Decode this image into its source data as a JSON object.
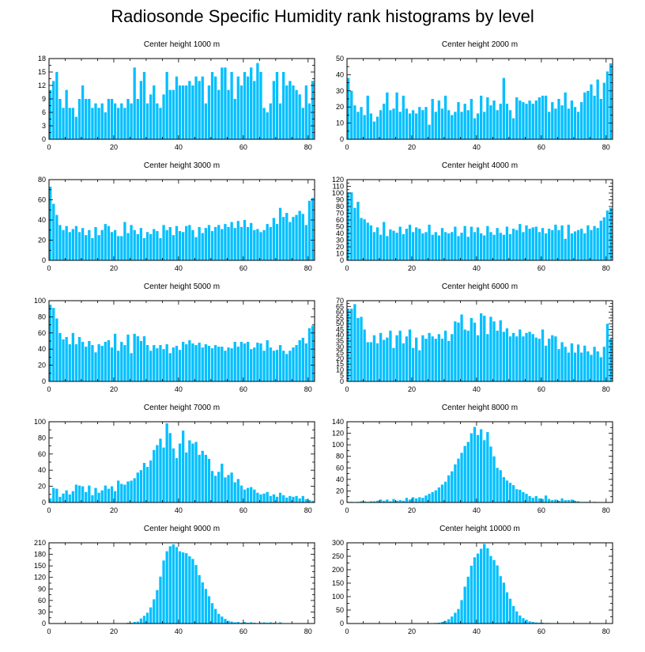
{
  "title": "Radiosonde Specific Humidity rank histograms by level",
  "bar_color": "#00bfff",
  "chart_data": [
    {
      "type": "bar",
      "title": "Center height 1000 m",
      "xlabel": "",
      "ylabel": "",
      "xlim": [
        0,
        82
      ],
      "ylim": [
        0,
        18
      ],
      "xticks": [
        0,
        20,
        40,
        60,
        80
      ],
      "yticks": [
        0,
        3,
        6,
        9,
        12,
        15,
        18
      ],
      "values": [
        11,
        13,
        15,
        9,
        7,
        11,
        7,
        7,
        5,
        9,
        12,
        9,
        9,
        7,
        8,
        7,
        8,
        6,
        9,
        9,
        8,
        7,
        8,
        7,
        9,
        8,
        16,
        9,
        13,
        15,
        8,
        10,
        12,
        8,
        7,
        10,
        15,
        11,
        11,
        14,
        12,
        12,
        12,
        13,
        12,
        14,
        13,
        14,
        8,
        12,
        15,
        14,
        11,
        16,
        16,
        11,
        15,
        9,
        14,
        12,
        15,
        14,
        16,
        13,
        17,
        15,
        7,
        6,
        8,
        13,
        15,
        8,
        15,
        12,
        13,
        12,
        11,
        10,
        7,
        12,
        8,
        13
      ]
    },
    {
      "type": "bar",
      "title": "Center height 2000 m",
      "xlabel": "",
      "ylabel": "",
      "xlim": [
        0,
        82
      ],
      "ylim": [
        0,
        50
      ],
      "xticks": [
        0,
        20,
        40,
        60,
        80
      ],
      "yticks": [
        0,
        10,
        20,
        30,
        40,
        50
      ],
      "values": [
        38,
        30,
        21,
        17,
        20,
        15,
        27,
        16,
        11,
        14,
        18,
        22,
        29,
        18,
        19,
        29,
        17,
        27,
        19,
        16,
        18,
        16,
        20,
        18,
        20,
        9,
        25,
        17,
        24,
        19,
        27,
        18,
        15,
        17,
        23,
        17,
        22,
        18,
        25,
        13,
        16,
        27,
        17,
        26,
        21,
        24,
        18,
        22,
        38,
        22,
        18,
        13,
        26,
        24,
        23,
        22,
        24,
        22,
        24,
        26,
        27,
        27,
        17,
        23,
        19,
        25,
        21,
        29,
        19,
        24,
        20,
        17,
        23,
        29,
        30,
        34,
        27,
        37,
        25,
        35,
        42,
        47
      ]
    },
    {
      "type": "bar",
      "title": "Center height 3000 m",
      "xlabel": "",
      "ylabel": "",
      "xlim": [
        0,
        82
      ],
      "ylim": [
        0,
        80
      ],
      "xticks": [
        0,
        20,
        40,
        60,
        80
      ],
      "yticks": [
        0,
        20,
        40,
        60,
        80
      ],
      "values": [
        73,
        56,
        45,
        35,
        30,
        34,
        28,
        31,
        34,
        28,
        32,
        25,
        30,
        22,
        33,
        25,
        30,
        36,
        34,
        28,
        30,
        24,
        24,
        38,
        27,
        35,
        30,
        26,
        32,
        22,
        28,
        26,
        31,
        29,
        22,
        35,
        30,
        33,
        25,
        34,
        29,
        28,
        34,
        35,
        30,
        23,
        33,
        27,
        32,
        35,
        29,
        33,
        35,
        31,
        36,
        33,
        38,
        32,
        39,
        33,
        40,
        33,
        37,
        30,
        31,
        28,
        30,
        36,
        33,
        42,
        36,
        52,
        43,
        47,
        38,
        43,
        45,
        49,
        46,
        35,
        59,
        62
      ]
    },
    {
      "type": "bar",
      "title": "Center height 4000 m",
      "xlabel": "",
      "ylabel": "",
      "xlim": [
        0,
        82
      ],
      "ylim": [
        0,
        120
      ],
      "xticks": [
        0,
        20,
        40,
        60,
        80
      ],
      "yticks": [
        0,
        10,
        20,
        30,
        40,
        50,
        60,
        70,
        80,
        90,
        100,
        110,
        120
      ],
      "values": [
        101,
        101,
        78,
        87,
        63,
        61,
        56,
        52,
        42,
        49,
        38,
        57,
        36,
        46,
        44,
        41,
        50,
        39,
        47,
        53,
        42,
        49,
        47,
        40,
        42,
        53,
        38,
        42,
        37,
        48,
        42,
        40,
        42,
        50,
        36,
        41,
        51,
        35,
        50,
        42,
        49,
        40,
        37,
        51,
        42,
        38,
        48,
        41,
        38,
        50,
        39,
        47,
        45,
        54,
        42,
        52,
        47,
        49,
        50,
        42,
        48,
        40,
        47,
        45,
        53,
        45,
        52,
        32,
        53,
        40,
        43,
        45,
        47,
        40,
        52,
        45,
        51,
        48,
        59,
        64,
        74,
        78
      ]
    },
    {
      "type": "bar",
      "title": "Center height 5000 m",
      "xlabel": "",
      "ylabel": "",
      "xlim": [
        0,
        82
      ],
      "ylim": [
        0,
        100
      ],
      "xticks": [
        0,
        20,
        40,
        60,
        80
      ],
      "yticks": [
        0,
        20,
        40,
        60,
        80,
        100
      ],
      "values": [
        95,
        91,
        78,
        60,
        52,
        55,
        46,
        60,
        46,
        55,
        49,
        43,
        50,
        45,
        36,
        46,
        44,
        49,
        51,
        42,
        59,
        38,
        49,
        45,
        58,
        35,
        59,
        56,
        50,
        56,
        45,
        38,
        45,
        41,
        45,
        40,
        46,
        35,
        42,
        44,
        39,
        49,
        46,
        51,
        47,
        45,
        48,
        42,
        46,
        44,
        41,
        45,
        43,
        43,
        38,
        42,
        41,
        49,
        43,
        49,
        47,
        49,
        40,
        42,
        48,
        47,
        38,
        51,
        42,
        38,
        39,
        45,
        38,
        34,
        38,
        42,
        45,
        51,
        54,
        47,
        66,
        69
      ]
    },
    {
      "type": "bar",
      "title": "Center height 6000 m",
      "xlabel": "",
      "ylabel": "",
      "xlim": [
        0,
        82
      ],
      "ylim": [
        0,
        70
      ],
      "xticks": [
        0,
        20,
        40,
        60,
        80
      ],
      "yticks": [
        0,
        5,
        10,
        15,
        20,
        25,
        30,
        35,
        40,
        45,
        50,
        55,
        60,
        65,
        70
      ],
      "values": [
        62,
        63,
        67,
        55,
        56,
        45,
        34,
        34,
        40,
        33,
        42,
        36,
        38,
        44,
        29,
        40,
        44,
        33,
        39,
        45,
        29,
        38,
        27,
        40,
        37,
        42,
        39,
        37,
        41,
        37,
        44,
        35,
        41,
        52,
        51,
        58,
        45,
        44,
        55,
        51,
        40,
        59,
        57,
        41,
        56,
        52,
        44,
        53,
        43,
        46,
        39,
        42,
        39,
        45,
        39,
        42,
        43,
        41,
        38,
        37,
        45,
        31,
        37,
        40,
        39,
        28,
        34,
        30,
        25,
        33,
        25,
        32,
        25,
        31,
        26,
        23,
        30,
        26,
        21,
        30,
        50,
        37
      ]
    },
    {
      "type": "bar",
      "title": "Center height 7000 m",
      "xlabel": "",
      "ylabel": "",
      "xlim": [
        0,
        82
      ],
      "ylim": [
        0,
        100
      ],
      "xticks": [
        0,
        20,
        40,
        60,
        80
      ],
      "yticks": [
        0,
        20,
        40,
        60,
        80,
        100
      ],
      "values": [
        5,
        18,
        17,
        7,
        11,
        15,
        10,
        14,
        22,
        21,
        20,
        13,
        21,
        9,
        18,
        12,
        15,
        21,
        17,
        20,
        14,
        27,
        23,
        22,
        26,
        27,
        30,
        37,
        40,
        49,
        44,
        52,
        65,
        71,
        79,
        68,
        98,
        86,
        67,
        55,
        73,
        89,
        62,
        77,
        73,
        75,
        59,
        64,
        59,
        54,
        39,
        33,
        38,
        48,
        31,
        34,
        37,
        25,
        29,
        21,
        16,
        18,
        19,
        16,
        12,
        10,
        11,
        13,
        8,
        10,
        7,
        12,
        9,
        6,
        8,
        7,
        8,
        5,
        8,
        4,
        3,
        2
      ]
    },
    {
      "type": "bar",
      "title": "Center height 8000 m",
      "xlabel": "",
      "ylabel": "",
      "xlim": [
        0,
        82
      ],
      "ylim": [
        0,
        140
      ],
      "xticks": [
        0,
        20,
        40,
        60,
        80
      ],
      "yticks": [
        0,
        20,
        40,
        60,
        80,
        100,
        120,
        140
      ],
      "values": [
        1,
        1,
        0,
        1,
        2,
        2,
        1,
        2,
        2,
        3,
        5,
        3,
        5,
        2,
        6,
        3,
        4,
        3,
        8,
        5,
        9,
        7,
        9,
        8,
        12,
        15,
        18,
        21,
        26,
        31,
        36,
        47,
        54,
        66,
        76,
        86,
        98,
        105,
        120,
        131,
        117,
        127,
        108,
        122,
        97,
        80,
        60,
        56,
        44,
        38,
        34,
        30,
        23,
        22,
        18,
        15,
        11,
        8,
        11,
        7,
        6,
        12,
        6,
        4,
        5,
        3,
        7,
        4,
        4,
        5,
        3,
        2,
        1,
        1,
        1,
        0,
        1,
        0,
        0,
        0,
        0,
        0
      ]
    },
    {
      "type": "bar",
      "title": "Center height 9000 m",
      "xlabel": "",
      "ylabel": "",
      "xlim": [
        0,
        82
      ],
      "ylim": [
        0,
        210
      ],
      "xticks": [
        0,
        20,
        40,
        60,
        80
      ],
      "yticks": [
        0,
        30,
        60,
        90,
        120,
        150,
        180,
        210
      ],
      "values": [
        0,
        0,
        0,
        0,
        0,
        0,
        0,
        0,
        0,
        0,
        0,
        0,
        0,
        0,
        0,
        0,
        0,
        0,
        0,
        0,
        0,
        0,
        0,
        0,
        2,
        2,
        4,
        5,
        13,
        20,
        28,
        42,
        63,
        87,
        122,
        164,
        188,
        201,
        206,
        199,
        188,
        185,
        183,
        175,
        168,
        152,
        126,
        107,
        90,
        71,
        53,
        38,
        25,
        18,
        12,
        7,
        5,
        3,
        4,
        2,
        4,
        2,
        3,
        2,
        1,
        2,
        3,
        2,
        3,
        2,
        1,
        3,
        1,
        1,
        1,
        0,
        0,
        0,
        0,
        0,
        0,
        0
      ]
    },
    {
      "type": "bar",
      "title": "Center height 10000 m",
      "xlabel": "",
      "ylabel": "",
      "xlim": [
        0,
        82
      ],
      "ylim": [
        0,
        300
      ],
      "xticks": [
        0,
        20,
        40,
        60,
        80
      ],
      "yticks": [
        0,
        50,
        100,
        150,
        200,
        250,
        300
      ],
      "values": [
        0,
        0,
        0,
        0,
        0,
        0,
        0,
        0,
        0,
        0,
        0,
        0,
        0,
        0,
        0,
        0,
        0,
        0,
        0,
        0,
        0,
        0,
        0,
        0,
        0,
        0,
        0,
        2,
        3,
        6,
        10,
        16,
        26,
        40,
        54,
        87,
        137,
        174,
        215,
        246,
        260,
        278,
        296,
        280,
        251,
        236,
        216,
        176,
        152,
        116,
        92,
        65,
        45,
        30,
        20,
        14,
        8,
        6,
        4,
        3,
        3,
        2,
        2,
        1,
        1,
        2,
        1,
        0,
        0,
        0,
        0,
        0,
        0,
        0,
        0,
        0,
        0,
        0,
        0,
        0,
        0,
        0
      ]
    }
  ]
}
